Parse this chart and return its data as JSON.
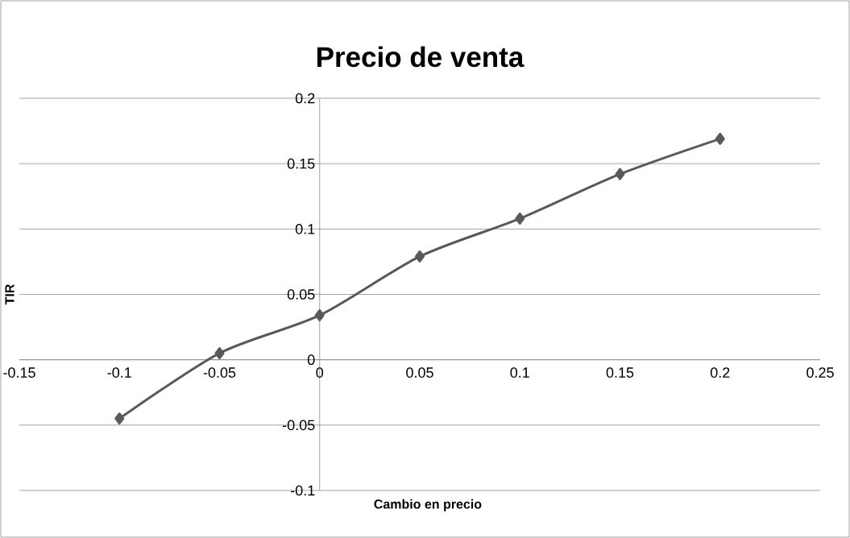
{
  "chart_data": {
    "type": "line",
    "title": "Precio de venta",
    "xlabel": "Cambio en precio",
    "ylabel": "TIR",
    "x": [
      -0.1,
      -0.05,
      0,
      0.05,
      0.1,
      0.15,
      0.2
    ],
    "series": [
      {
        "color": "#595959",
        "values": [
          -0.045,
          0.005,
          0.034,
          0.079,
          0.108,
          0.142,
          0.169
        ]
      }
    ],
    "marker": "diamond",
    "grid": "y",
    "xlim": [
      -0.15,
      0.25
    ],
    "xticks": [
      -0.15,
      -0.1,
      -0.05,
      0,
      0.05,
      0.1,
      0.15,
      0.2,
      0.25
    ],
    "ylim": [
      -0.1,
      0.2
    ],
    "yticks": [
      -0.1,
      -0.05,
      0,
      0.05,
      0.1,
      0.15,
      0.2
    ]
  }
}
